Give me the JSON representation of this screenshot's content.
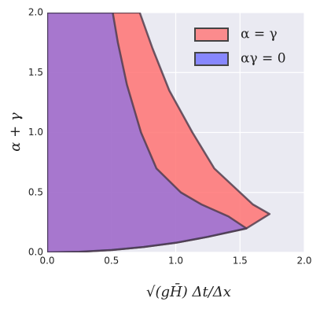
{
  "chart_data": {
    "type": "area",
    "xlabel": "√(gH̄) Δt/Δx",
    "ylabel": "α + γ",
    "xlim": [
      0,
      2
    ],
    "ylim": [
      0,
      2
    ],
    "xticks": [
      {
        "value": 0,
        "label": "0.0"
      },
      0.5,
      {
        "value": 1,
        "label": "1.0"
      },
      1.5,
      {
        "value": 2,
        "label": "2.0"
      }
    ],
    "yticks": [
      {
        "value": 0,
        "label": "0.0"
      },
      0.5,
      {
        "value": 1,
        "label": "1.0"
      },
      1.5,
      {
        "value": 2,
        "label": "2.0"
      }
    ],
    "grid": true,
    "legend": "upper right",
    "series": [
      {
        "name": "α = γ",
        "color": "#ff7373",
        "x": [
          0,
          0.25,
          0.5,
          0.75,
          1.0,
          1.25,
          1.55,
          1.73,
          1.6,
          1.5,
          1.3,
          1.13,
          0.95,
          0.82,
          0.72,
          0
        ],
        "values": [
          0,
          0.005,
          0.02,
          0.045,
          0.08,
          0.13,
          0.2,
          0.32,
          0.4,
          0.5,
          0.7,
          1.0,
          1.35,
          1.7,
          2.0,
          2.0
        ]
      },
      {
        "name": "αγ = 0",
        "color": "#6e6eff",
        "x": [
          0,
          0.25,
          0.5,
          0.75,
          1.0,
          1.25,
          1.55,
          1.41,
          1.2,
          1.04,
          0.85,
          0.73,
          0.62,
          0.55,
          0.51,
          0
        ],
        "values": [
          0,
          0.005,
          0.02,
          0.045,
          0.08,
          0.13,
          0.2,
          0.3,
          0.4,
          0.5,
          0.7,
          1.0,
          1.4,
          1.75,
          2.0,
          2.0
        ]
      }
    ]
  }
}
